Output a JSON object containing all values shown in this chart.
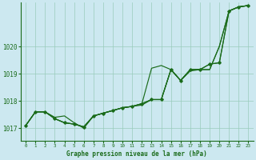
{
  "title": "Graphe pression niveau de la mer (hPa)",
  "background_color": "#cce8f0",
  "grid_color": "#99ccbb",
  "line_color": "#1a6b1a",
  "xlim": [
    -0.5,
    23.5
  ],
  "ylim": [
    1016.55,
    1021.6
  ],
  "yticks": [
    1017,
    1018,
    1019,
    1020
  ],
  "xticks": [
    0,
    1,
    2,
    3,
    4,
    5,
    6,
    7,
    8,
    9,
    10,
    11,
    12,
    13,
    14,
    15,
    16,
    17,
    18,
    19,
    20,
    21,
    22,
    23
  ],
  "series1": [
    1017.1,
    1017.6,
    1017.6,
    1017.4,
    1017.45,
    1017.2,
    1017.0,
    1017.45,
    1017.55,
    1017.65,
    1017.75,
    1017.8,
    1017.85,
    1018.05,
    1018.05,
    1019.15,
    1018.75,
    1019.1,
    1019.15,
    1019.15,
    1020.0,
    1021.3,
    1021.45,
    1021.5
  ],
  "series2": [
    1017.1,
    1017.6,
    1017.6,
    1017.35,
    1017.2,
    1017.15,
    1017.05,
    1017.45,
    1017.55,
    1017.65,
    1017.75,
    1017.8,
    1017.9,
    1019.2,
    1019.3,
    1019.15,
    1018.75,
    1019.15,
    1019.15,
    1019.35,
    1019.4,
    1021.3,
    1021.45,
    1021.5
  ],
  "series3": [
    1017.1,
    1017.6,
    1017.6,
    1017.35,
    1017.2,
    1017.15,
    1017.05,
    1017.45,
    1017.55,
    1017.65,
    1017.75,
    1017.8,
    1017.9,
    1018.05,
    1018.05,
    1019.15,
    1018.75,
    1019.15,
    1019.15,
    1019.15,
    1020.0,
    1021.3,
    1021.45,
    1021.5
  ],
  "marker_y": [
    1017.1,
    1017.6,
    1017.6,
    1017.35,
    1017.2,
    1017.15,
    1017.05,
    1017.45,
    1017.55,
    1017.65,
    1017.75,
    1017.8,
    1017.9,
    1018.05,
    1018.05,
    1019.15,
    1018.75,
    1019.15,
    1019.15,
    1019.35,
    1019.4,
    1021.3,
    1021.45,
    1021.5
  ],
  "figwidth": 3.2,
  "figheight": 2.0,
  "dpi": 100
}
